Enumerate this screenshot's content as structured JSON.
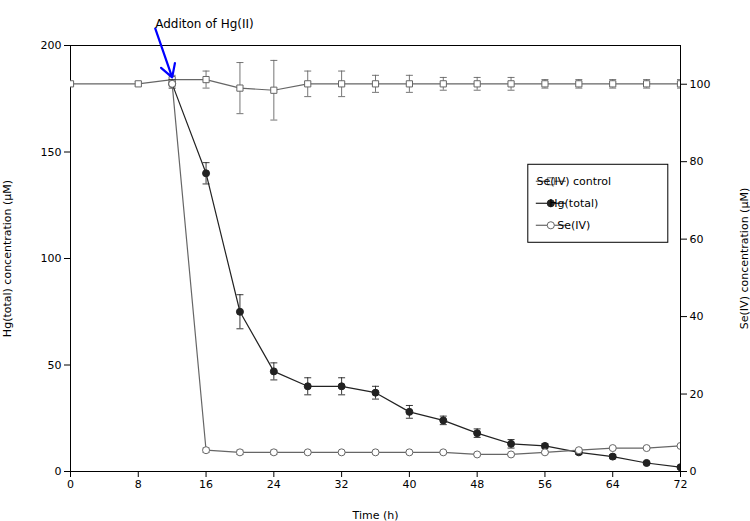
{
  "chart_data": {
    "type": "line",
    "xlabel": "Time (h)",
    "ylabel": "Hg(total) concentration (μM)",
    "y2label": "Se(IV) concentration (μM)",
    "xlim": [
      0,
      72
    ],
    "ylim": [
      0,
      200
    ],
    "y2lim": [
      0,
      110
    ],
    "xticks": [
      0,
      8,
      16,
      24,
      32,
      40,
      48,
      56,
      64,
      72
    ],
    "yticks": [
      0,
      50,
      100,
      150,
      200
    ],
    "y2ticks": [
      0,
      20,
      40,
      60,
      80,
      100
    ],
    "grid": false,
    "legend": "upper right",
    "series": [
      {
        "name": "Se(IV) control",
        "color": "#666666",
        "marker": "open square",
        "line_style": "solid",
        "x": [
          0,
          8,
          12,
          16,
          20,
          24,
          28,
          32,
          36,
          40,
          44,
          48,
          52,
          56,
          60,
          64,
          68,
          72
        ],
        "values": [
          182,
          182,
          184,
          184,
          180,
          179,
          182,
          182,
          182,
          182,
          182,
          182,
          182,
          182,
          182,
          182,
          182,
          182
        ],
        "yerr": [
          1,
          1,
          2,
          4,
          12,
          14,
          6,
          6,
          4,
          4,
          3,
          3,
          3,
          2,
          2,
          2,
          2,
          2
        ]
      },
      {
        "name": "Hg(total)",
        "color": "#222222",
        "marker": "filled circle",
        "line_style": "solid",
        "x": [
          12,
          16,
          20,
          24,
          28,
          32,
          36,
          40,
          44,
          48,
          52,
          56,
          60,
          64,
          68,
          72
        ],
        "values": [
          182,
          140,
          75,
          47,
          40,
          40,
          37,
          28,
          24,
          18,
          13,
          12,
          9,
          7,
          4,
          2
        ],
        "yerr": [
          2,
          5,
          8,
          4,
          4,
          4,
          3,
          3,
          2,
          2,
          2,
          1,
          1,
          1,
          0.5,
          0.3
        ]
      },
      {
        "name": "Se(IV)",
        "color": "#666666",
        "marker": "open circle",
        "line_style": "solid",
        "x": [
          12,
          16,
          20,
          24,
          28,
          32,
          36,
          40,
          44,
          48,
          52,
          56,
          60,
          64,
          68,
          72
        ],
        "values": [
          182,
          10,
          9,
          9,
          9,
          9,
          9,
          9,
          9,
          8,
          8,
          9,
          10,
          11,
          11,
          12
        ],
        "yerr": [
          1,
          1,
          1,
          1,
          0.5,
          0.5,
          0.5,
          0.5,
          0.5,
          0.5,
          0.5,
          0.5,
          0.5,
          0.5,
          0.5,
          0.5
        ]
      }
    ],
    "annotations": [
      {
        "text": "Additon of Hg(II)",
        "x": 10,
        "y": 208,
        "arrow_x": 12,
        "arrow_y": 185,
        "color": "blue"
      }
    ]
  }
}
